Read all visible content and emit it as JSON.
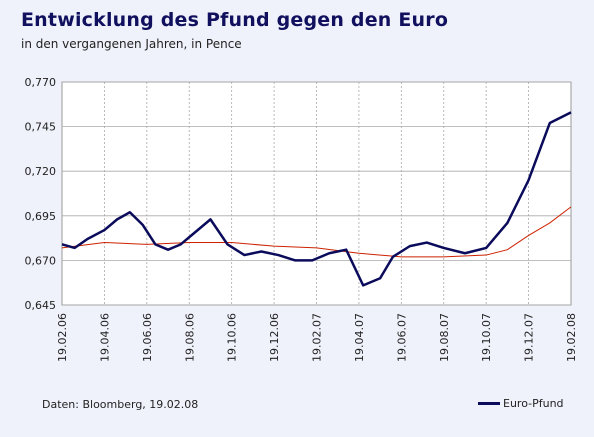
{
  "title": "Entwicklung des Pfund gegen den Euro",
  "subtitle": "in den vergangenen Jahren, in Pence",
  "source": "Daten: Bloomberg, 19.02.08",
  "colors": {
    "background": "#f0f2fb",
    "series": "#0b0b5c",
    "average": "#cc2200",
    "grid": "#aaaaaa"
  },
  "chart_data": {
    "type": "line",
    "grid": true,
    "legend_position": "bottom-right",
    "ylim": [
      0.645,
      0.77
    ],
    "yticks": [
      "0,770",
      "0,745",
      "0,720",
      "0,695",
      "0,670",
      "0,645"
    ],
    "ytick_values": [
      0.77,
      0.745,
      0.72,
      0.695,
      0.67,
      0.645
    ],
    "xticks": [
      "19.02.06",
      "19.04.06",
      "19.06.06",
      "19.08.06",
      "19.10.06",
      "19.12.06",
      "19.02.07",
      "19.04.07",
      "19.06.07",
      "19.08.07",
      "19.10.07",
      "19.12.07",
      "19.02.08"
    ],
    "series": [
      {
        "name": "Euro-Pfund",
        "x": [
          0,
          0.3,
          0.6,
          1.0,
          1.3,
          1.6,
          1.9,
          2.2,
          2.5,
          2.8,
          3.1,
          3.5,
          3.9,
          4.3,
          4.7,
          5.1,
          5.5,
          5.9,
          6.3,
          6.7,
          7.1,
          7.5,
          7.8,
          8.2,
          8.6,
          9.0,
          9.5,
          10.0,
          10.5,
          11.0,
          11.5,
          12.0
        ],
        "y": [
          0.679,
          0.677,
          0.682,
          0.687,
          0.693,
          0.697,
          0.69,
          0.679,
          0.676,
          0.679,
          0.685,
          0.693,
          0.679,
          0.673,
          0.675,
          0.673,
          0.67,
          0.67,
          0.674,
          0.676,
          0.656,
          0.66,
          0.672,
          0.678,
          0.68,
          0.677,
          0.674,
          0.677,
          0.691,
          0.715,
          0.747,
          0.753
        ]
      },
      {
        "name": "",
        "x": [
          0,
          1.0,
          2.0,
          3.0,
          4.0,
          5.0,
          6.0,
          7.0,
          8.0,
          9.0,
          10.0,
          10.5,
          11.0,
          11.5,
          12.0
        ],
        "y": [
          0.677,
          0.68,
          0.679,
          0.68,
          0.68,
          0.678,
          0.677,
          0.674,
          0.672,
          0.672,
          0.673,
          0.676,
          0.684,
          0.691,
          0.7
        ]
      }
    ]
  }
}
